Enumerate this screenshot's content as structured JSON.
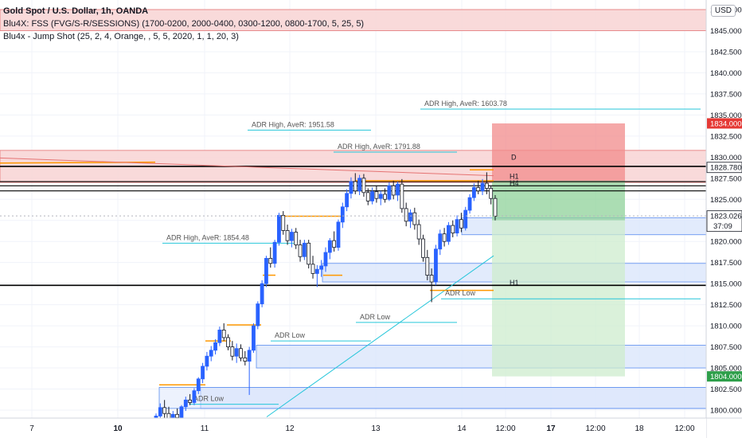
{
  "header": {
    "symbol_title": "Gold Spot / U.S. Dollar, 1h, OANDA",
    "indicator_1": "Blu4X: FSS (FVG/S-R/SESSIONS) (1700-0200, 2000-0400, 0300-1200, 0800-1700, 5, 25, 5)",
    "indicator_2": "Blu4x - Jump Shot (25, 2, 4, Orange, , 5, 5, 2020, 1, 1, 20, 3)",
    "currency_badge": "USD"
  },
  "colors": {
    "bull": "#2962ff",
    "bear": "#131722",
    "orange": "#ff9800",
    "teal": "#26c6da",
    "zone_red": "#f8d4d4",
    "zone_blue": "#dbe6fb",
    "stop": "#f28b8b",
    "target_dark": "#8fd19a",
    "target_light": "#cdeccd",
    "price_badge": "#131722",
    "stop_badge": "#e53935",
    "target_badge": "#2e9f4a"
  },
  "chart_data": {
    "type": "candlestick",
    "symbol": "Gold Spot / U.S. Dollar",
    "interval": "1h",
    "ylim": [
      1799.0,
      1850.0
    ],
    "y_ticks": [
      "1800.000",
      "1802.500",
      "1805.000",
      "1807.500",
      "1810.000",
      "1812.500",
      "1815.000",
      "1817.500",
      "1820.000",
      "1822.500",
      "1825.000",
      "1827.500",
      "1830.000",
      "1832.500",
      "1835.000",
      "1837.500",
      "1840.000",
      "1842.500",
      "1845.000",
      "1847.500"
    ],
    "x_labels": [
      "7",
      "10",
      "11",
      "12",
      "13",
      "14",
      "12:00",
      "17",
      "12:00",
      "18",
      "12:00"
    ],
    "x_labels_bold": [
      "10",
      "17"
    ],
    "price_labels": [
      {
        "value": 1834.0,
        "text": "1834.000",
        "kind": "stop"
      },
      {
        "value": 1828.78,
        "text": "1828.780",
        "kind": "level"
      },
      {
        "value": 1823.026,
        "text": "1823.026",
        "kind": "current",
        "countdown": "37:09"
      },
      {
        "value": 1804.0,
        "text": "1804.000",
        "kind": "target"
      }
    ],
    "horizontal_lines": [
      1828.9,
      1827.1,
      1826.6,
      1826.0,
      1814.8
    ],
    "red_zones": [
      [
        1845.0,
        1847.5
      ],
      [
        1827.0,
        1830.8
      ]
    ],
    "blue_zones": [
      [
        1820.8,
        1822.8
      ],
      [
        1815.2,
        1817.4
      ],
      [
        1805.0,
        1807.7
      ],
      [
        1800.2,
        1802.7
      ]
    ],
    "position": {
      "entry": 1827.2,
      "stop": 1834.0,
      "target": 1804.0
    },
    "level_labels": [
      {
        "text": "D",
        "value": 1829.5
      },
      {
        "text": "H1",
        "value": 1827.6
      },
      {
        "text": "H4",
        "value": 1826.8
      },
      {
        "text": "H1",
        "value": 1815.0
      }
    ],
    "adr_labels": [
      {
        "text": "ADR High, AveR: 1603.78",
        "value": 1835.7
      },
      {
        "text": "ADR High, AveR: 1951.58",
        "value": 1833.2
      },
      {
        "text": "ADR High, AveR: 1791.88",
        "value": 1830.6
      },
      {
        "text": "ADR High, AveR: 1854.48",
        "value": 1819.8
      },
      {
        "text": "ADR Low",
        "value": 1813.2
      },
      {
        "text": "ADR Low",
        "value": 1810.4
      },
      {
        "text": "ADR Low",
        "value": 1808.2
      },
      {
        "text": "ADR Low",
        "value": 1800.7
      }
    ],
    "candles": [
      {
        "o": 1798.2,
        "h": 1799.6,
        "l": 1797.0,
        "c": 1799.3
      },
      {
        "o": 1799.3,
        "h": 1800.8,
        "l": 1798.6,
        "c": 1800.3
      },
      {
        "o": 1800.3,
        "h": 1801.2,
        "l": 1799.1,
        "c": 1799.6
      },
      {
        "o": 1799.6,
        "h": 1800.4,
        "l": 1798.2,
        "c": 1798.8
      },
      {
        "o": 1798.8,
        "h": 1799.9,
        "l": 1798.0,
        "c": 1799.5
      },
      {
        "o": 1799.5,
        "h": 1800.2,
        "l": 1798.9,
        "c": 1799.1
      },
      {
        "o": 1799.1,
        "h": 1800.6,
        "l": 1798.7,
        "c": 1800.4
      },
      {
        "o": 1800.4,
        "h": 1801.6,
        "l": 1799.9,
        "c": 1801.2
      },
      {
        "o": 1801.2,
        "h": 1801.9,
        "l": 1800.6,
        "c": 1800.9
      },
      {
        "o": 1800.9,
        "h": 1802.6,
        "l": 1800.6,
        "c": 1802.3
      },
      {
        "o": 1802.3,
        "h": 1803.9,
        "l": 1801.9,
        "c": 1803.7
      },
      {
        "o": 1803.7,
        "h": 1805.6,
        "l": 1803.2,
        "c": 1805.2
      },
      {
        "o": 1805.2,
        "h": 1806.9,
        "l": 1804.7,
        "c": 1806.4
      },
      {
        "o": 1806.4,
        "h": 1807.6,
        "l": 1805.8,
        "c": 1807.1
      },
      {
        "o": 1807.1,
        "h": 1808.4,
        "l": 1806.6,
        "c": 1808.0
      },
      {
        "o": 1808.0,
        "h": 1809.9,
        "l": 1807.6,
        "c": 1809.5
      },
      {
        "o": 1809.5,
        "h": 1810.3,
        "l": 1808.2,
        "c": 1808.6
      },
      {
        "o": 1808.6,
        "h": 1809.0,
        "l": 1807.1,
        "c": 1807.5
      },
      {
        "o": 1807.5,
        "h": 1808.2,
        "l": 1805.9,
        "c": 1806.4
      },
      {
        "o": 1806.4,
        "h": 1807.9,
        "l": 1805.6,
        "c": 1807.3
      },
      {
        "o": 1807.3,
        "h": 1807.8,
        "l": 1805.8,
        "c": 1806.2
      },
      {
        "o": 1806.2,
        "h": 1807.0,
        "l": 1805.3,
        "c": 1805.8
      },
      {
        "o": 1805.8,
        "h": 1807.5,
        "l": 1801.8,
        "c": 1807.1
      },
      {
        "o": 1807.1,
        "h": 1810.3,
        "l": 1806.8,
        "c": 1810.0
      },
      {
        "o": 1810.0,
        "h": 1812.9,
        "l": 1809.6,
        "c": 1812.6
      },
      {
        "o": 1812.6,
        "h": 1815.4,
        "l": 1812.2,
        "c": 1815.0
      },
      {
        "o": 1815.0,
        "h": 1818.3,
        "l": 1814.6,
        "c": 1818.0
      },
      {
        "o": 1818.0,
        "h": 1819.3,
        "l": 1816.9,
        "c": 1817.4
      },
      {
        "o": 1817.4,
        "h": 1820.2,
        "l": 1816.9,
        "c": 1819.9
      },
      {
        "o": 1819.9,
        "h": 1823.4,
        "l": 1819.5,
        "c": 1823.1
      },
      {
        "o": 1823.1,
        "h": 1823.6,
        "l": 1820.8,
        "c": 1821.3
      },
      {
        "o": 1821.3,
        "h": 1822.0,
        "l": 1819.6,
        "c": 1820.1
      },
      {
        "o": 1820.1,
        "h": 1821.5,
        "l": 1819.3,
        "c": 1821.1
      },
      {
        "o": 1821.1,
        "h": 1821.6,
        "l": 1819.1,
        "c": 1819.6
      },
      {
        "o": 1819.6,
        "h": 1820.2,
        "l": 1817.6,
        "c": 1818.2
      },
      {
        "o": 1818.2,
        "h": 1820.2,
        "l": 1817.8,
        "c": 1819.8
      },
      {
        "o": 1819.8,
        "h": 1820.2,
        "l": 1816.8,
        "c": 1817.3
      },
      {
        "o": 1817.3,
        "h": 1818.3,
        "l": 1815.6,
        "c": 1816.2
      },
      {
        "o": 1816.2,
        "h": 1817.2,
        "l": 1814.6,
        "c": 1816.7
      },
      {
        "o": 1816.7,
        "h": 1817.8,
        "l": 1815.8,
        "c": 1817.1
      },
      {
        "o": 1817.1,
        "h": 1819.3,
        "l": 1816.4,
        "c": 1818.7
      },
      {
        "o": 1818.7,
        "h": 1820.4,
        "l": 1817.9,
        "c": 1820.1
      },
      {
        "o": 1820.1,
        "h": 1821.2,
        "l": 1818.8,
        "c": 1819.3
      },
      {
        "o": 1819.3,
        "h": 1822.6,
        "l": 1818.9,
        "c": 1822.3
      },
      {
        "o": 1822.3,
        "h": 1824.6,
        "l": 1821.6,
        "c": 1824.1
      },
      {
        "o": 1824.1,
        "h": 1826.2,
        "l": 1823.6,
        "c": 1825.7
      },
      {
        "o": 1825.7,
        "h": 1827.6,
        "l": 1825.1,
        "c": 1827.1
      },
      {
        "o": 1827.1,
        "h": 1828.1,
        "l": 1825.6,
        "c": 1826.0
      },
      {
        "o": 1826.0,
        "h": 1827.9,
        "l": 1825.5,
        "c": 1827.5
      },
      {
        "o": 1827.5,
        "h": 1828.0,
        "l": 1825.3,
        "c": 1825.8
      },
      {
        "o": 1825.8,
        "h": 1826.3,
        "l": 1824.3,
        "c": 1824.8
      },
      {
        "o": 1824.8,
        "h": 1826.4,
        "l": 1824.4,
        "c": 1825.9
      },
      {
        "o": 1825.9,
        "h": 1826.6,
        "l": 1824.6,
        "c": 1825.1
      },
      {
        "o": 1825.1,
        "h": 1826.0,
        "l": 1824.3,
        "c": 1825.6
      },
      {
        "o": 1825.6,
        "h": 1826.3,
        "l": 1824.6,
        "c": 1825.0
      },
      {
        "o": 1825.0,
        "h": 1827.0,
        "l": 1824.8,
        "c": 1826.6
      },
      {
        "o": 1826.6,
        "h": 1827.2,
        "l": 1825.0,
        "c": 1825.5
      },
      {
        "o": 1825.5,
        "h": 1827.1,
        "l": 1824.8,
        "c": 1826.8
      },
      {
        "o": 1826.8,
        "h": 1827.4,
        "l": 1823.4,
        "c": 1823.9
      },
      {
        "o": 1823.9,
        "h": 1824.6,
        "l": 1821.8,
        "c": 1822.4
      },
      {
        "o": 1822.4,
        "h": 1823.8,
        "l": 1821.6,
        "c": 1823.4
      },
      {
        "o": 1823.4,
        "h": 1824.0,
        "l": 1821.4,
        "c": 1822.0
      },
      {
        "o": 1822.0,
        "h": 1822.6,
        "l": 1819.6,
        "c": 1820.3
      },
      {
        "o": 1820.3,
        "h": 1820.8,
        "l": 1817.6,
        "c": 1818.1
      },
      {
        "o": 1818.1,
        "h": 1819.0,
        "l": 1815.4,
        "c": 1816.0
      },
      {
        "o": 1816.0,
        "h": 1816.8,
        "l": 1812.8,
        "c": 1815.2
      },
      {
        "o": 1815.2,
        "h": 1819.6,
        "l": 1814.8,
        "c": 1819.1
      },
      {
        "o": 1819.1,
        "h": 1821.4,
        "l": 1818.4,
        "c": 1820.9
      },
      {
        "o": 1820.9,
        "h": 1821.6,
        "l": 1819.4,
        "c": 1820.0
      },
      {
        "o": 1820.0,
        "h": 1822.3,
        "l": 1819.6,
        "c": 1821.9
      },
      {
        "o": 1821.9,
        "h": 1822.5,
        "l": 1820.5,
        "c": 1821.0
      },
      {
        "o": 1821.0,
        "h": 1823.1,
        "l": 1820.6,
        "c": 1822.6
      },
      {
        "o": 1822.6,
        "h": 1823.4,
        "l": 1821.1,
        "c": 1821.6
      },
      {
        "o": 1821.6,
        "h": 1824.1,
        "l": 1821.3,
        "c": 1823.7
      },
      {
        "o": 1823.7,
        "h": 1825.6,
        "l": 1823.3,
        "c": 1825.2
      },
      {
        "o": 1825.2,
        "h": 1826.9,
        "l": 1824.8,
        "c": 1826.4
      },
      {
        "o": 1826.4,
        "h": 1827.2,
        "l": 1825.6,
        "c": 1826.0
      },
      {
        "o": 1826.0,
        "h": 1827.4,
        "l": 1825.5,
        "c": 1826.9
      },
      {
        "o": 1826.9,
        "h": 1828.2,
        "l": 1825.6,
        "c": 1826.3
      },
      {
        "o": 1826.3,
        "h": 1826.6,
        "l": 1824.4,
        "c": 1825.1
      },
      {
        "o": 1825.1,
        "h": 1825.5,
        "l": 1822.5,
        "c": 1823.0
      }
    ]
  }
}
